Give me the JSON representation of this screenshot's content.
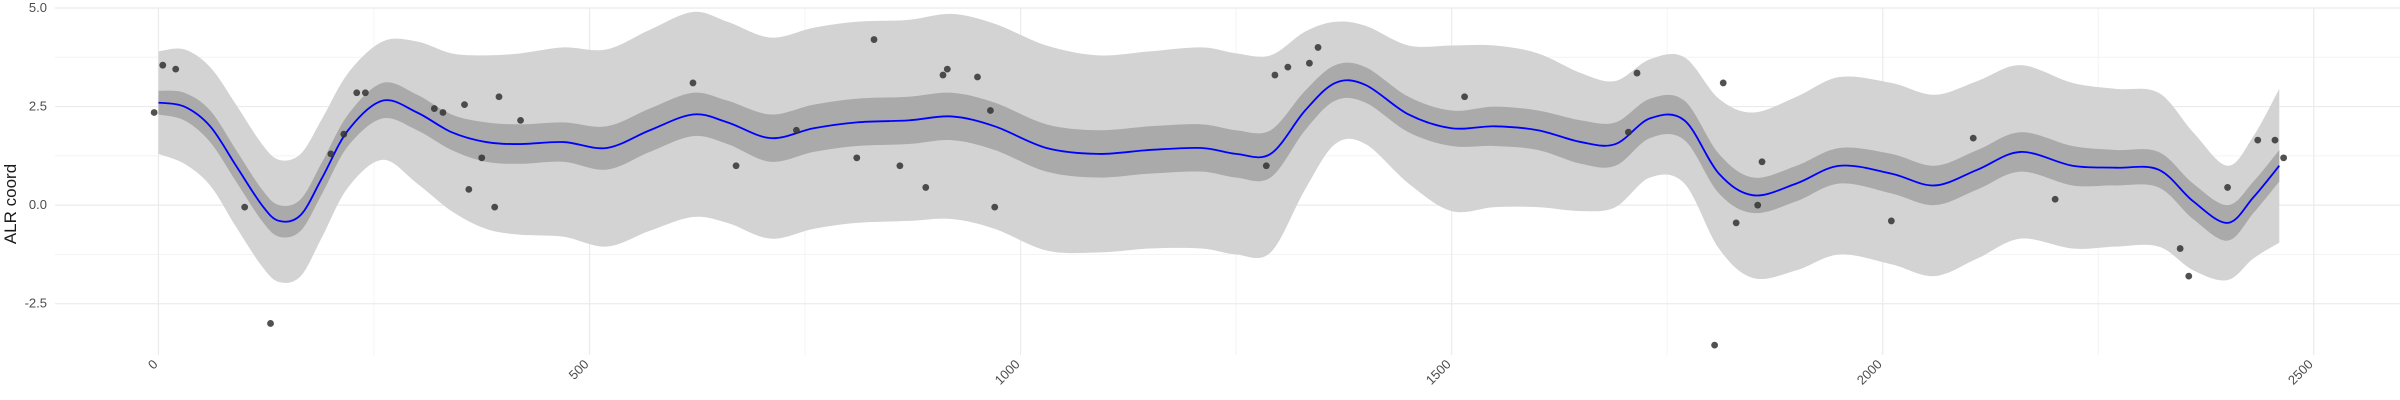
{
  "chart_data": {
    "type": "line",
    "ylabel": "ALR coord",
    "xlim": [
      -120,
      2600
    ],
    "ylim": [
      -3.8,
      5.0
    ],
    "x_ticks": [
      0,
      500,
      1000,
      1500,
      2000,
      2500
    ],
    "x_tick_labels": [
      "0",
      "500",
      "1000",
      "1500",
      "2000",
      "2500"
    ],
    "y_ticks": [
      -2.5,
      0.0,
      2.5,
      5.0
    ],
    "y_tick_labels": [
      "-2.5",
      "0.0",
      "2.5",
      "5.0"
    ],
    "grid": true,
    "colors": {
      "line": "#0000ff",
      "inner_band": "#aaaaaa",
      "outer_band": "#d3d3d3",
      "points": "#333333",
      "grid_major": "#ebebeb",
      "grid_minor": "#f4f4f4"
    },
    "mean": {
      "x": [
        0,
        30,
        60,
        90,
        120,
        140,
        165,
        190,
        220,
        260,
        300,
        340,
        380,
        420,
        470,
        520,
        570,
        620,
        660,
        710,
        760,
        810,
        870,
        920,
        970,
        1030,
        1090,
        1150,
        1210,
        1250,
        1290,
        1330,
        1365,
        1400,
        1450,
        1500,
        1550,
        1600,
        1650,
        1690,
        1730,
        1770,
        1810,
        1850,
        1900,
        1950,
        2010,
        2060,
        2110,
        2160,
        2220,
        2270,
        2320,
        2360,
        2400,
        2430,
        2460
      ],
      "y": [
        2.6,
        2.5,
        2.0,
        1.0,
        0.0,
        -0.4,
        -0.25,
        0.7,
        1.9,
        2.65,
        2.35,
        1.85,
        1.6,
        1.55,
        1.6,
        1.45,
        1.9,
        2.3,
        2.1,
        1.7,
        1.95,
        2.1,
        2.15,
        2.25,
        2.0,
        1.45,
        1.3,
        1.4,
        1.45,
        1.3,
        1.3,
        2.4,
        3.1,
        3.05,
        2.3,
        1.95,
        2.0,
        1.9,
        1.6,
        1.55,
        2.2,
        2.15,
        0.8,
        0.25,
        0.55,
        1.0,
        0.8,
        0.5,
        0.9,
        1.35,
        1.0,
        0.95,
        0.9,
        0.1,
        -0.45,
        0.2,
        1.0
      ]
    },
    "inner_band_half_width": [
      0.3,
      0.35,
      0.4,
      0.4,
      0.4,
      0.4,
      0.4,
      0.4,
      0.4,
      0.45,
      0.45,
      0.45,
      0.5,
      0.5,
      0.5,
      0.55,
      0.55,
      0.55,
      0.55,
      0.6,
      0.6,
      0.6,
      0.6,
      0.6,
      0.6,
      0.6,
      0.6,
      0.6,
      0.6,
      0.6,
      0.6,
      0.5,
      0.45,
      0.45,
      0.45,
      0.45,
      0.5,
      0.5,
      0.55,
      0.55,
      0.5,
      0.5,
      0.5,
      0.45,
      0.45,
      0.45,
      0.5,
      0.5,
      0.5,
      0.5,
      0.5,
      0.45,
      0.45,
      0.45,
      0.45,
      0.4,
      0.4
    ],
    "outer_band_half_width": [
      1.3,
      1.45,
      1.5,
      1.55,
      1.55,
      1.55,
      1.55,
      1.5,
      1.45,
      1.5,
      1.8,
      2.0,
      2.2,
      2.3,
      2.4,
      2.5,
      2.55,
      2.6,
      2.55,
      2.55,
      2.55,
      2.55,
      2.55,
      2.6,
      2.6,
      2.6,
      2.5,
      2.5,
      2.55,
      2.55,
      2.5,
      2.0,
      1.55,
      1.5,
      1.75,
      2.1,
      2.05,
      1.95,
      1.75,
      1.6,
      1.5,
      1.6,
      1.9,
      2.1,
      2.2,
      2.25,
      2.3,
      2.3,
      2.25,
      2.2,
      2.1,
      2.0,
      1.95,
      1.75,
      1.45,
      1.55,
      1.95
    ],
    "points": [
      {
        "x": -5,
        "y": 2.35
      },
      {
        "x": 5,
        "y": 3.55
      },
      {
        "x": 20,
        "y": 3.45
      },
      {
        "x": 100,
        "y": -0.05
      },
      {
        "x": 130,
        "y": -3.0
      },
      {
        "x": 200,
        "y": 1.3
      },
      {
        "x": 215,
        "y": 1.8
      },
      {
        "x": 230,
        "y": 2.85
      },
      {
        "x": 240,
        "y": 2.85
      },
      {
        "x": 320,
        "y": 2.45
      },
      {
        "x": 330,
        "y": 2.35
      },
      {
        "x": 355,
        "y": 2.55
      },
      {
        "x": 360,
        "y": 0.4
      },
      {
        "x": 375,
        "y": 1.2
      },
      {
        "x": 390,
        "y": -0.05
      },
      {
        "x": 395,
        "y": 2.75
      },
      {
        "x": 420,
        "y": 2.15
      },
      {
        "x": 620,
        "y": 3.1
      },
      {
        "x": 670,
        "y": 1.0
      },
      {
        "x": 740,
        "y": 1.9
      },
      {
        "x": 810,
        "y": 1.2
      },
      {
        "x": 830,
        "y": 4.2
      },
      {
        "x": 860,
        "y": 1.0
      },
      {
        "x": 890,
        "y": 0.45
      },
      {
        "x": 910,
        "y": 3.3
      },
      {
        "x": 915,
        "y": 3.45
      },
      {
        "x": 950,
        "y": 3.25
      },
      {
        "x": 965,
        "y": 2.4
      },
      {
        "x": 970,
        "y": -0.05
      },
      {
        "x": 1285,
        "y": 1.0
      },
      {
        "x": 1295,
        "y": 3.3
      },
      {
        "x": 1310,
        "y": 3.5
      },
      {
        "x": 1335,
        "y": 3.6
      },
      {
        "x": 1345,
        "y": 4.0
      },
      {
        "x": 1515,
        "y": 2.75
      },
      {
        "x": 1705,
        "y": 1.85
      },
      {
        "x": 1715,
        "y": 3.35
      },
      {
        "x": 1805,
        "y": -3.55
      },
      {
        "x": 1815,
        "y": 3.1
      },
      {
        "x": 1830,
        "y": -0.45
      },
      {
        "x": 1855,
        "y": 0.0
      },
      {
        "x": 1860,
        "y": 1.1
      },
      {
        "x": 2010,
        "y": -0.4
      },
      {
        "x": 2105,
        "y": 1.7
      },
      {
        "x": 2200,
        "y": 0.15
      },
      {
        "x": 2345,
        "y": -1.1
      },
      {
        "x": 2355,
        "y": -1.8
      },
      {
        "x": 2400,
        "y": 0.45
      },
      {
        "x": 2435,
        "y": 1.65
      },
      {
        "x": 2455,
        "y": 1.65
      },
      {
        "x": 2465,
        "y": 1.2
      }
    ]
  }
}
